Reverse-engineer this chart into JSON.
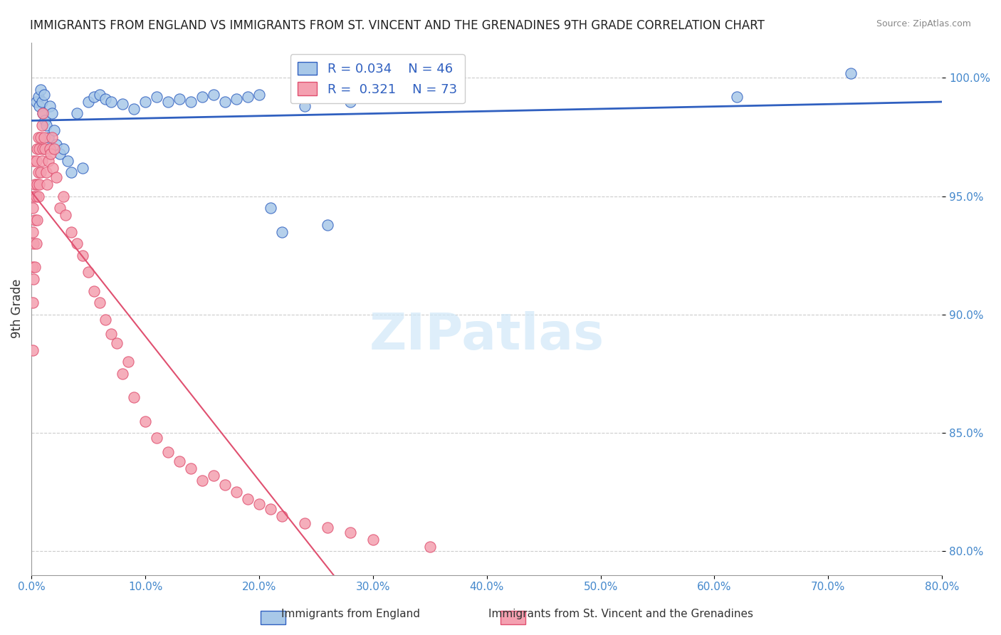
{
  "title": "IMMIGRANTS FROM ENGLAND VS IMMIGRANTS FROM ST. VINCENT AND THE GRENADINES 9TH GRADE CORRELATION CHART",
  "source": "Source: ZipAtlas.com",
  "ylabel": "9th Grade",
  "xlabel": "",
  "xlim": [
    0.0,
    80.0
  ],
  "ylim": [
    79.0,
    101.5
  ],
  "yticks": [
    80.0,
    85.0,
    90.0,
    95.0,
    100.0
  ],
  "xticks": [
    0.0,
    10.0,
    20.0,
    30.0,
    40.0,
    50.0,
    60.0,
    70.0,
    80.0
  ],
  "legend_r1": "R = 0.034",
  "legend_n1": "N = 46",
  "legend_r2": "R = 0.321",
  "legend_n2": "N = 73",
  "color_england": "#a8c8e8",
  "color_stvincent": "#f4a0b0",
  "color_england_line": "#3060c0",
  "color_stvincent_line": "#e05070",
  "color_axis_labels": "#4488cc",
  "color_title": "#222222",
  "watermark_text": "ZIPatlas",
  "england_x": [
    0.4,
    0.6,
    0.7,
    0.8,
    0.9,
    1.0,
    1.1,
    1.2,
    1.3,
    1.5,
    1.6,
    1.8,
    2.0,
    2.2,
    2.5,
    2.8,
    3.2,
    3.5,
    4.0,
    4.5,
    5.0,
    5.5,
    6.0,
    6.5,
    7.0,
    8.0,
    9.0,
    10.0,
    11.0,
    12.0,
    13.0,
    14.0,
    15.0,
    16.0,
    17.0,
    18.0,
    19.0,
    20.0,
    21.0,
    22.0,
    24.0,
    26.0,
    28.0,
    35.0,
    62.0,
    72.0
  ],
  "england_y": [
    99.0,
    99.2,
    98.8,
    99.5,
    99.0,
    98.5,
    99.3,
    98.2,
    98.0,
    97.5,
    98.8,
    98.5,
    97.8,
    97.2,
    96.8,
    97.0,
    96.5,
    96.0,
    98.5,
    96.2,
    99.0,
    99.2,
    99.3,
    99.1,
    99.0,
    98.9,
    98.7,
    99.0,
    99.2,
    99.0,
    99.1,
    99.0,
    99.2,
    99.3,
    99.0,
    99.1,
    99.2,
    99.3,
    94.5,
    93.5,
    98.8,
    93.8,
    99.0,
    99.5,
    99.2,
    100.2
  ],
  "stvincent_x": [
    0.1,
    0.1,
    0.1,
    0.1,
    0.1,
    0.2,
    0.2,
    0.2,
    0.2,
    0.3,
    0.3,
    0.3,
    0.4,
    0.4,
    0.4,
    0.5,
    0.5,
    0.5,
    0.6,
    0.6,
    0.6,
    0.7,
    0.7,
    0.8,
    0.8,
    0.9,
    0.9,
    1.0,
    1.0,
    1.1,
    1.2,
    1.3,
    1.4,
    1.5,
    1.6,
    1.7,
    1.8,
    1.9,
    2.0,
    2.2,
    2.5,
    2.8,
    3.0,
    3.5,
    4.0,
    4.5,
    5.0,
    5.5,
    6.0,
    6.5,
    7.0,
    7.5,
    8.0,
    8.5,
    9.0,
    10.0,
    11.0,
    12.0,
    13.0,
    14.0,
    15.0,
    16.0,
    17.0,
    18.0,
    19.0,
    20.0,
    21.0,
    22.0,
    24.0,
    26.0,
    28.0,
    30.0,
    35.0
  ],
  "stvincent_y": [
    88.5,
    90.5,
    92.0,
    93.5,
    94.5,
    91.5,
    93.0,
    95.0,
    96.5,
    92.0,
    94.0,
    95.5,
    93.0,
    95.0,
    96.5,
    94.0,
    95.5,
    97.0,
    95.0,
    96.0,
    97.5,
    95.5,
    97.0,
    96.0,
    97.5,
    96.5,
    98.0,
    97.0,
    98.5,
    97.5,
    97.0,
    96.0,
    95.5,
    96.5,
    97.0,
    96.8,
    97.5,
    96.2,
    97.0,
    95.8,
    94.5,
    95.0,
    94.2,
    93.5,
    93.0,
    92.5,
    91.8,
    91.0,
    90.5,
    89.8,
    89.2,
    88.8,
    87.5,
    88.0,
    86.5,
    85.5,
    84.8,
    84.2,
    83.8,
    83.5,
    83.0,
    83.2,
    82.8,
    82.5,
    82.2,
    82.0,
    81.8,
    81.5,
    81.2,
    81.0,
    80.8,
    80.5,
    80.2
  ]
}
